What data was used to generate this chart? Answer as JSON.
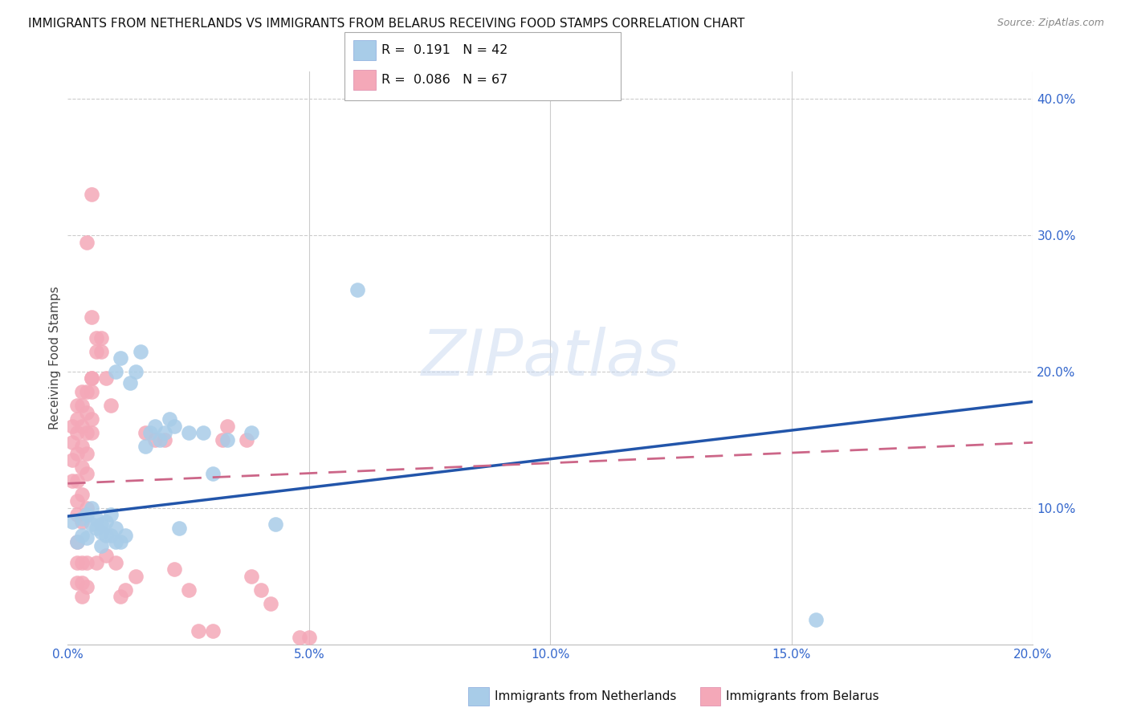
{
  "title": "IMMIGRANTS FROM NETHERLANDS VS IMMIGRANTS FROM BELARUS RECEIVING FOOD STAMPS CORRELATION CHART",
  "source": "Source: ZipAtlas.com",
  "ylabel": "Receiving Food Stamps",
  "xlim": [
    0.0,
    0.2
  ],
  "ylim": [
    0.0,
    0.42
  ],
  "netherlands_color": "#a8cce8",
  "belarus_color": "#f4a8b8",
  "trend_netherlands_color": "#2255aa",
  "trend_belarus_color": "#cc6688",
  "watermark": "ZIPatlas",
  "nl_trend": [
    0.0,
    0.094,
    0.2,
    0.178
  ],
  "by_trend": [
    0.0,
    0.118,
    0.2,
    0.148
  ],
  "netherlands_points": [
    [
      0.001,
      0.09
    ],
    [
      0.002,
      0.075
    ],
    [
      0.003,
      0.08
    ],
    [
      0.003,
      0.092
    ],
    [
      0.004,
      0.078
    ],
    [
      0.004,
      0.095
    ],
    [
      0.005,
      0.088
    ],
    [
      0.005,
      0.1
    ],
    [
      0.006,
      0.085
    ],
    [
      0.006,
      0.092
    ],
    [
      0.007,
      0.088
    ],
    [
      0.007,
      0.082
    ],
    [
      0.007,
      0.072
    ],
    [
      0.008,
      0.09
    ],
    [
      0.008,
      0.08
    ],
    [
      0.009,
      0.095
    ],
    [
      0.009,
      0.08
    ],
    [
      0.01,
      0.2
    ],
    [
      0.01,
      0.085
    ],
    [
      0.01,
      0.075
    ],
    [
      0.011,
      0.21
    ],
    [
      0.011,
      0.075
    ],
    [
      0.012,
      0.08
    ],
    [
      0.013,
      0.192
    ],
    [
      0.014,
      0.2
    ],
    [
      0.015,
      0.215
    ],
    [
      0.016,
      0.145
    ],
    [
      0.017,
      0.155
    ],
    [
      0.018,
      0.16
    ],
    [
      0.019,
      0.15
    ],
    [
      0.02,
      0.155
    ],
    [
      0.021,
      0.165
    ],
    [
      0.022,
      0.16
    ],
    [
      0.023,
      0.085
    ],
    [
      0.025,
      0.155
    ],
    [
      0.028,
      0.155
    ],
    [
      0.03,
      0.125
    ],
    [
      0.033,
      0.15
    ],
    [
      0.038,
      0.155
    ],
    [
      0.043,
      0.088
    ],
    [
      0.06,
      0.26
    ],
    [
      0.155,
      0.018
    ]
  ],
  "belarus_points": [
    [
      0.001,
      0.12
    ],
    [
      0.001,
      0.135
    ],
    [
      0.001,
      0.16
    ],
    [
      0.001,
      0.148
    ],
    [
      0.002,
      0.175
    ],
    [
      0.002,
      0.155
    ],
    [
      0.002,
      0.165
    ],
    [
      0.002,
      0.14
    ],
    [
      0.002,
      0.12
    ],
    [
      0.002,
      0.105
    ],
    [
      0.002,
      0.095
    ],
    [
      0.002,
      0.075
    ],
    [
      0.002,
      0.06
    ],
    [
      0.002,
      0.045
    ],
    [
      0.003,
      0.175
    ],
    [
      0.003,
      0.185
    ],
    [
      0.003,
      0.16
    ],
    [
      0.003,
      0.145
    ],
    [
      0.003,
      0.13
    ],
    [
      0.003,
      0.11
    ],
    [
      0.003,
      0.09
    ],
    [
      0.003,
      0.06
    ],
    [
      0.003,
      0.045
    ],
    [
      0.003,
      0.035
    ],
    [
      0.004,
      0.295
    ],
    [
      0.004,
      0.185
    ],
    [
      0.004,
      0.17
    ],
    [
      0.004,
      0.155
    ],
    [
      0.004,
      0.14
    ],
    [
      0.004,
      0.125
    ],
    [
      0.004,
      0.1
    ],
    [
      0.004,
      0.06
    ],
    [
      0.004,
      0.042
    ],
    [
      0.005,
      0.33
    ],
    [
      0.005,
      0.24
    ],
    [
      0.005,
      0.195
    ],
    [
      0.005,
      0.195
    ],
    [
      0.005,
      0.185
    ],
    [
      0.005,
      0.165
    ],
    [
      0.005,
      0.155
    ],
    [
      0.006,
      0.225
    ],
    [
      0.006,
      0.215
    ],
    [
      0.006,
      0.06
    ],
    [
      0.007,
      0.225
    ],
    [
      0.007,
      0.215
    ],
    [
      0.008,
      0.195
    ],
    [
      0.008,
      0.065
    ],
    [
      0.009,
      0.175
    ],
    [
      0.01,
      0.06
    ],
    [
      0.011,
      0.035
    ],
    [
      0.012,
      0.04
    ],
    [
      0.014,
      0.05
    ],
    [
      0.016,
      0.155
    ],
    [
      0.018,
      0.15
    ],
    [
      0.02,
      0.15
    ],
    [
      0.022,
      0.055
    ],
    [
      0.025,
      0.04
    ],
    [
      0.027,
      0.01
    ],
    [
      0.03,
      0.01
    ],
    [
      0.032,
      0.15
    ],
    [
      0.033,
      0.16
    ],
    [
      0.037,
      0.15
    ],
    [
      0.038,
      0.05
    ],
    [
      0.04,
      0.04
    ],
    [
      0.042,
      0.03
    ],
    [
      0.048,
      0.005
    ],
    [
      0.05,
      0.005
    ]
  ]
}
